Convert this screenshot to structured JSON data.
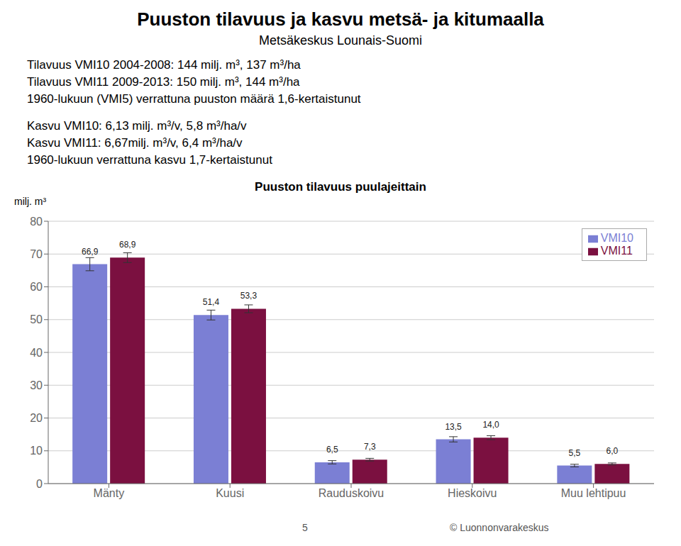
{
  "chart_data": {
    "type": "bar",
    "title": "Puuston tilavuus puulajeittain",
    "supertitle": "Puuston tilavuus ja kasvu metsä- ja kitumaalla",
    "subtitle": "Metsäkeskus Lounais-Suomi",
    "annotations": [
      "Tilavuus VMI10 2004-2008: 144 milj. m³, 137 m³/ha",
      "Tilavuus VMI11 2009-2013: 150 milj. m³, 144 m³/ha",
      "1960-lukuun (VMI5) verrattuna puuston määrä 1,6-kertaistunut",
      "Kasvu VMI10: 6,13 milj. m³/v, 5,8 m³/ha/v",
      "Kasvu VMI11: 6,67milj. m³/v, 6,4 m³/ha/v",
      "1960-lukuun verrattuna kasvu 1,7-kertaistunut"
    ],
    "footer": [
      "5",
      "© Luonnonvarakeskus"
    ],
    "ylabel": "milj. m³",
    "categories": [
      "Mänty",
      "Kuusi",
      "Rauduskoivu",
      "Hieskoivu",
      "Muu lehtipuu"
    ],
    "series": [
      {
        "name": "VMI10",
        "color": "#7B7FD4",
        "values": [
          66.9,
          51.4,
          6.5,
          13.5,
          5.5
        ],
        "errors": [
          2.0,
          1.5,
          0.5,
          0.8,
          0.4
        ],
        "value_labels": [
          "66,9",
          "51,4",
          "6,5",
          "13,5",
          "5,5"
        ]
      },
      {
        "name": "VMI11",
        "color": "#7B1040",
        "values": [
          68.9,
          53.3,
          7.3,
          14.0,
          6.0
        ],
        "errors": [
          1.5,
          1.2,
          0.4,
          0.6,
          0.3
        ],
        "value_labels": [
          "68,9",
          "53,3",
          "7,3",
          "14,0",
          "6,0"
        ]
      }
    ],
    "ylim": [
      0,
      80
    ],
    "yticks": [
      0,
      10,
      20,
      30,
      40,
      50,
      60,
      70,
      80
    ],
    "grid": true,
    "legend": "upper right",
    "data_labels": true
  }
}
